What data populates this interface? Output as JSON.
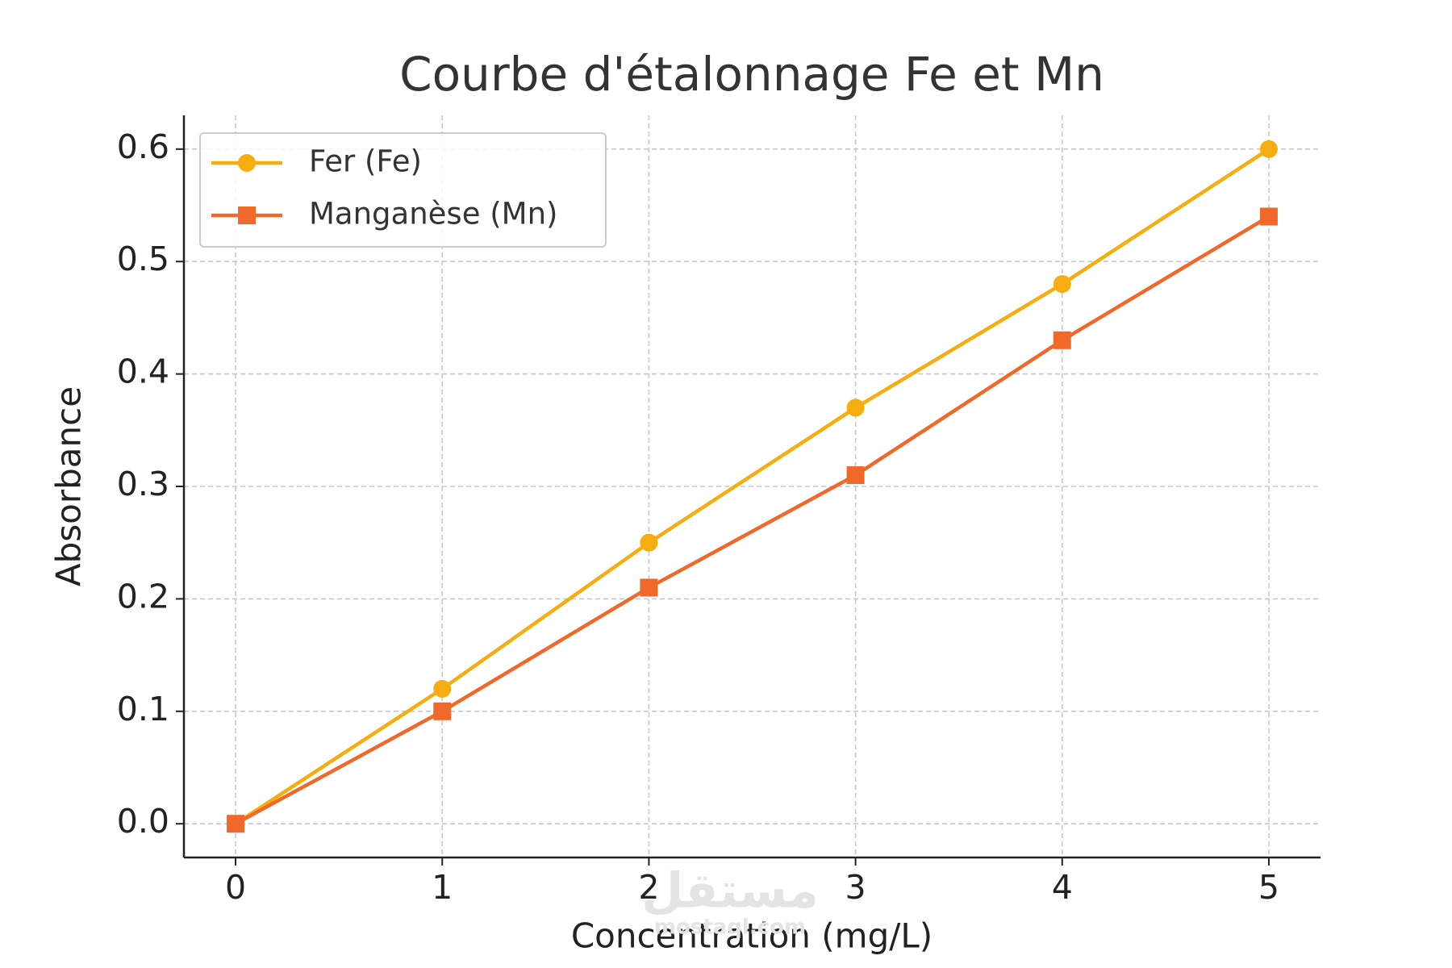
{
  "chart_data": {
    "type": "line",
    "title": "Courbe d'étalonnage Fe et Mn",
    "x_label": "Concentration (mg/L)",
    "y_label": "Absorbance",
    "x": [
      0,
      1,
      2,
      3,
      4,
      5
    ],
    "series": [
      {
        "name": "Fer (Fe)",
        "color": "#f5ad10",
        "marker": "circle",
        "values": [
          0,
          0.12,
          0.25,
          0.37,
          0.48,
          0.6
        ]
      },
      {
        "name": "Manganèse (Mn)",
        "color": "#f0692b",
        "marker": "square",
        "values": [
          0,
          0.1,
          0.21,
          0.31,
          0.43,
          0.54
        ]
      }
    ],
    "xlim": [
      -0.25,
      5.25
    ],
    "xticks": [
      0,
      1,
      2,
      3,
      4,
      5
    ],
    "ylim": [
      -0.03,
      0.63
    ],
    "yticks": [
      {
        "value": 0,
        "label": "0.0"
      },
      0.1,
      0.2,
      0.3,
      0.4,
      0.5,
      0.6
    ],
    "grid": true,
    "legend": "upper left",
    "watermark": [
      "مستقل",
      "mostaql.com"
    ]
  }
}
